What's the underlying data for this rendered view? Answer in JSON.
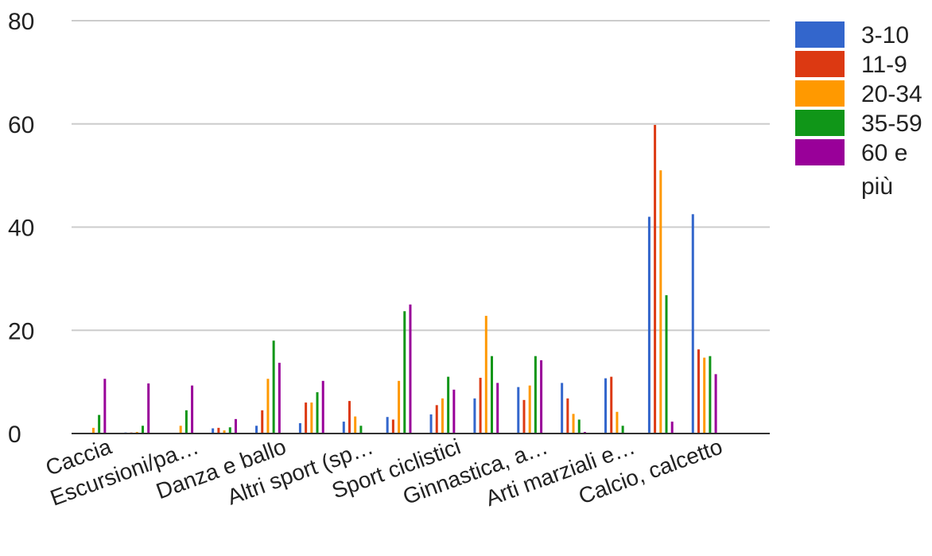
{
  "chart_data": {
    "type": "bar",
    "title": "",
    "xlabel": "",
    "ylabel": "",
    "ylim": [
      0,
      80
    ],
    "yticks": [
      0,
      20,
      40,
      60,
      80
    ],
    "grid": true,
    "legend_position": "right",
    "categories_labeled": [
      "Caccia",
      "Escursioni/pa…",
      "Danza e ballo",
      "Altri sport (sp…",
      "Sport ciclistici",
      "Ginnastica, a…",
      "Arti marziali e…",
      "Calcio, calcetto"
    ],
    "groups": 16,
    "series": [
      {
        "name": "3-10",
        "color": "#3366cc",
        "values": [
          0,
          0.2,
          0.1,
          1.0,
          1.5,
          2.0,
          2.3,
          3.2,
          3.7,
          6.8,
          9.0,
          9.8,
          10.7,
          42.0,
          42.5,
          0
        ]
      },
      {
        "name": "11-9",
        "color": "#dc3912",
        "values": [
          0,
          0.2,
          0.1,
          1.1,
          4.5,
          6.0,
          6.3,
          2.7,
          5.5,
          10.8,
          6.5,
          6.8,
          11.0,
          59.8,
          16.3,
          0
        ]
      },
      {
        "name": "20-34",
        "color": "#ff9900",
        "values": [
          1.1,
          0.3,
          1.5,
          0.6,
          10.6,
          6.0,
          3.3,
          10.2,
          6.8,
          22.8,
          9.3,
          3.8,
          4.2,
          51.0,
          14.7,
          0
        ]
      },
      {
        "name": "35-59",
        "color": "#109618",
        "values": [
          3.6,
          1.5,
          4.5,
          1.2,
          18.0,
          8.0,
          1.5,
          23.7,
          11.0,
          15.0,
          15.0,
          2.7,
          1.5,
          26.8,
          15.0,
          0
        ]
      },
      {
        "name": "60 e più",
        "color": "#990099",
        "values": [
          10.6,
          9.7,
          9.3,
          2.8,
          13.7,
          10.2,
          0,
          25.0,
          8.5,
          9.8,
          14.2,
          0.3,
          0,
          2.3,
          11.5,
          0
        ]
      }
    ]
  }
}
